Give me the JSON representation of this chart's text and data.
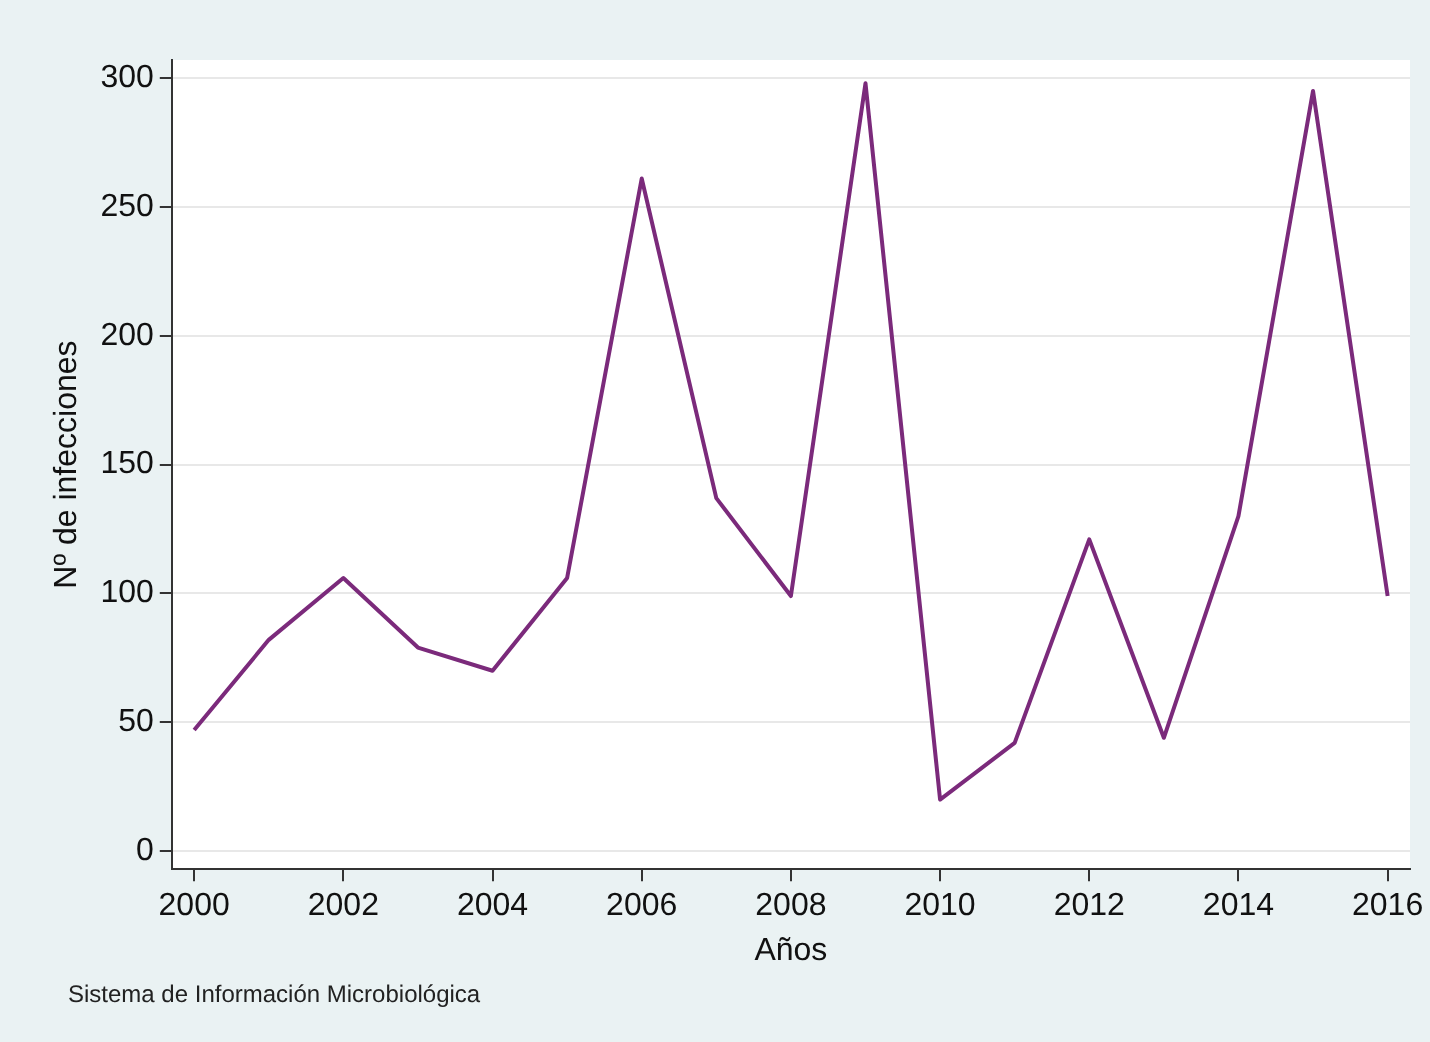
{
  "chart_data": {
    "type": "line",
    "xlabel": "Años",
    "ylabel": "Nº de infecciones",
    "x": [
      2000,
      2001,
      2002,
      2003,
      2004,
      2005,
      2006,
      2007,
      2008,
      2009,
      2010,
      2011,
      2012,
      2013,
      2014,
      2015,
      2016
    ],
    "series": [
      {
        "color": "#7b2a7b",
        "values": [
          47,
          82,
          106,
          79,
          70,
          106,
          261,
          137,
          99,
          298,
          20,
          42,
          121,
          44,
          130,
          295,
          99
        ]
      }
    ],
    "xlim": [
      1999.7,
      2016.3
    ],
    "xticks": [
      2000,
      2002,
      2004,
      2006,
      2008,
      2010,
      2012,
      2014,
      2016
    ],
    "ylim": [
      -7,
      307
    ],
    "yticks": [
      0,
      50,
      100,
      150,
      200,
      250,
      300
    ],
    "grid": "y",
    "legend": false,
    "marker": "none",
    "line_style": "solid",
    "annotations": [
      "Sistema de Información Microbiológica"
    ]
  }
}
